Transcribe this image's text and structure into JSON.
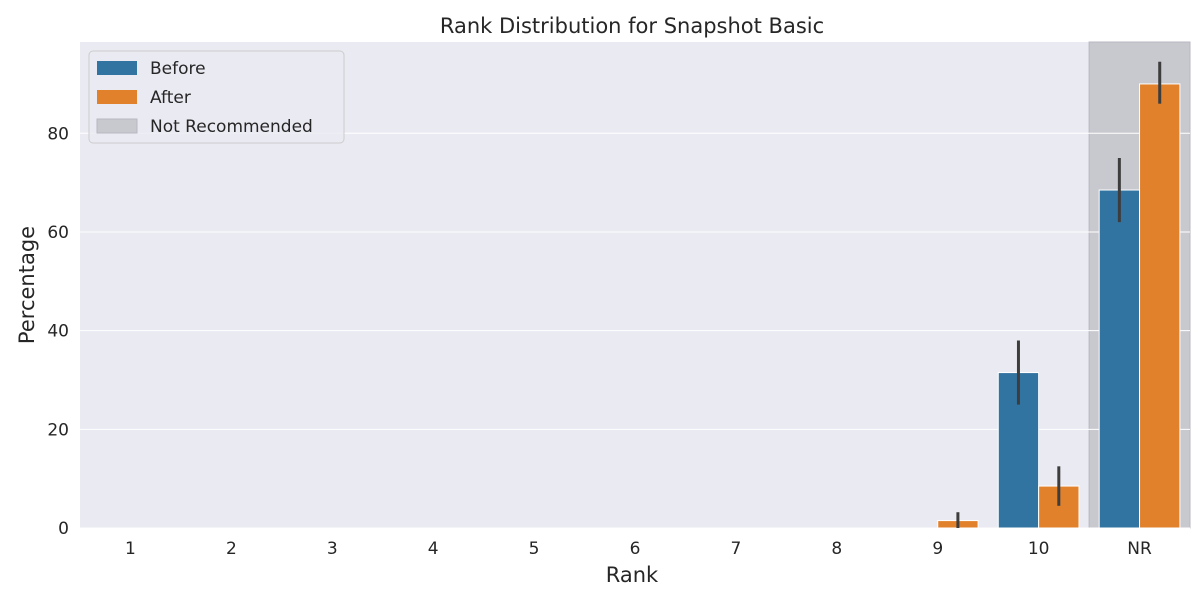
{
  "chart_data": {
    "type": "bar",
    "title": "Rank Distribution for Snapshot Basic",
    "xlabel": "Rank",
    "ylabel": "Percentage",
    "categories": [
      "1",
      "2",
      "3",
      "4",
      "5",
      "6",
      "7",
      "8",
      "9",
      "10",
      "NR"
    ],
    "ylim": [
      0,
      98.5
    ],
    "yticks": [
      0,
      20,
      40,
      60,
      80
    ],
    "grid": true,
    "legend_position": "top-left",
    "highlight": {
      "category": "NR",
      "label": "Not Recommended",
      "color": "#c8c8cf"
    },
    "series": [
      {
        "name": "Before",
        "color": "#3274a1",
        "values": [
          0,
          0,
          0,
          0,
          0,
          0,
          0,
          0,
          0,
          31.5,
          68.5
        ],
        "error_low": [
          0,
          0,
          0,
          0,
          0,
          0,
          0,
          0,
          0,
          25,
          62
        ],
        "error_high": [
          0,
          0,
          0,
          0,
          0,
          0,
          0,
          0,
          0,
          38,
          75
        ]
      },
      {
        "name": "After",
        "color": "#e1812c",
        "values": [
          0,
          0,
          0,
          0,
          0,
          0,
          0,
          0,
          1.5,
          8.5,
          90
        ],
        "error_low": [
          0,
          0,
          0,
          0,
          0,
          0,
          0,
          0,
          0,
          4.5,
          86
        ],
        "error_high": [
          0,
          0,
          0,
          0,
          0,
          0,
          0,
          0,
          3.2,
          12.5,
          94.5
        ]
      }
    ]
  }
}
